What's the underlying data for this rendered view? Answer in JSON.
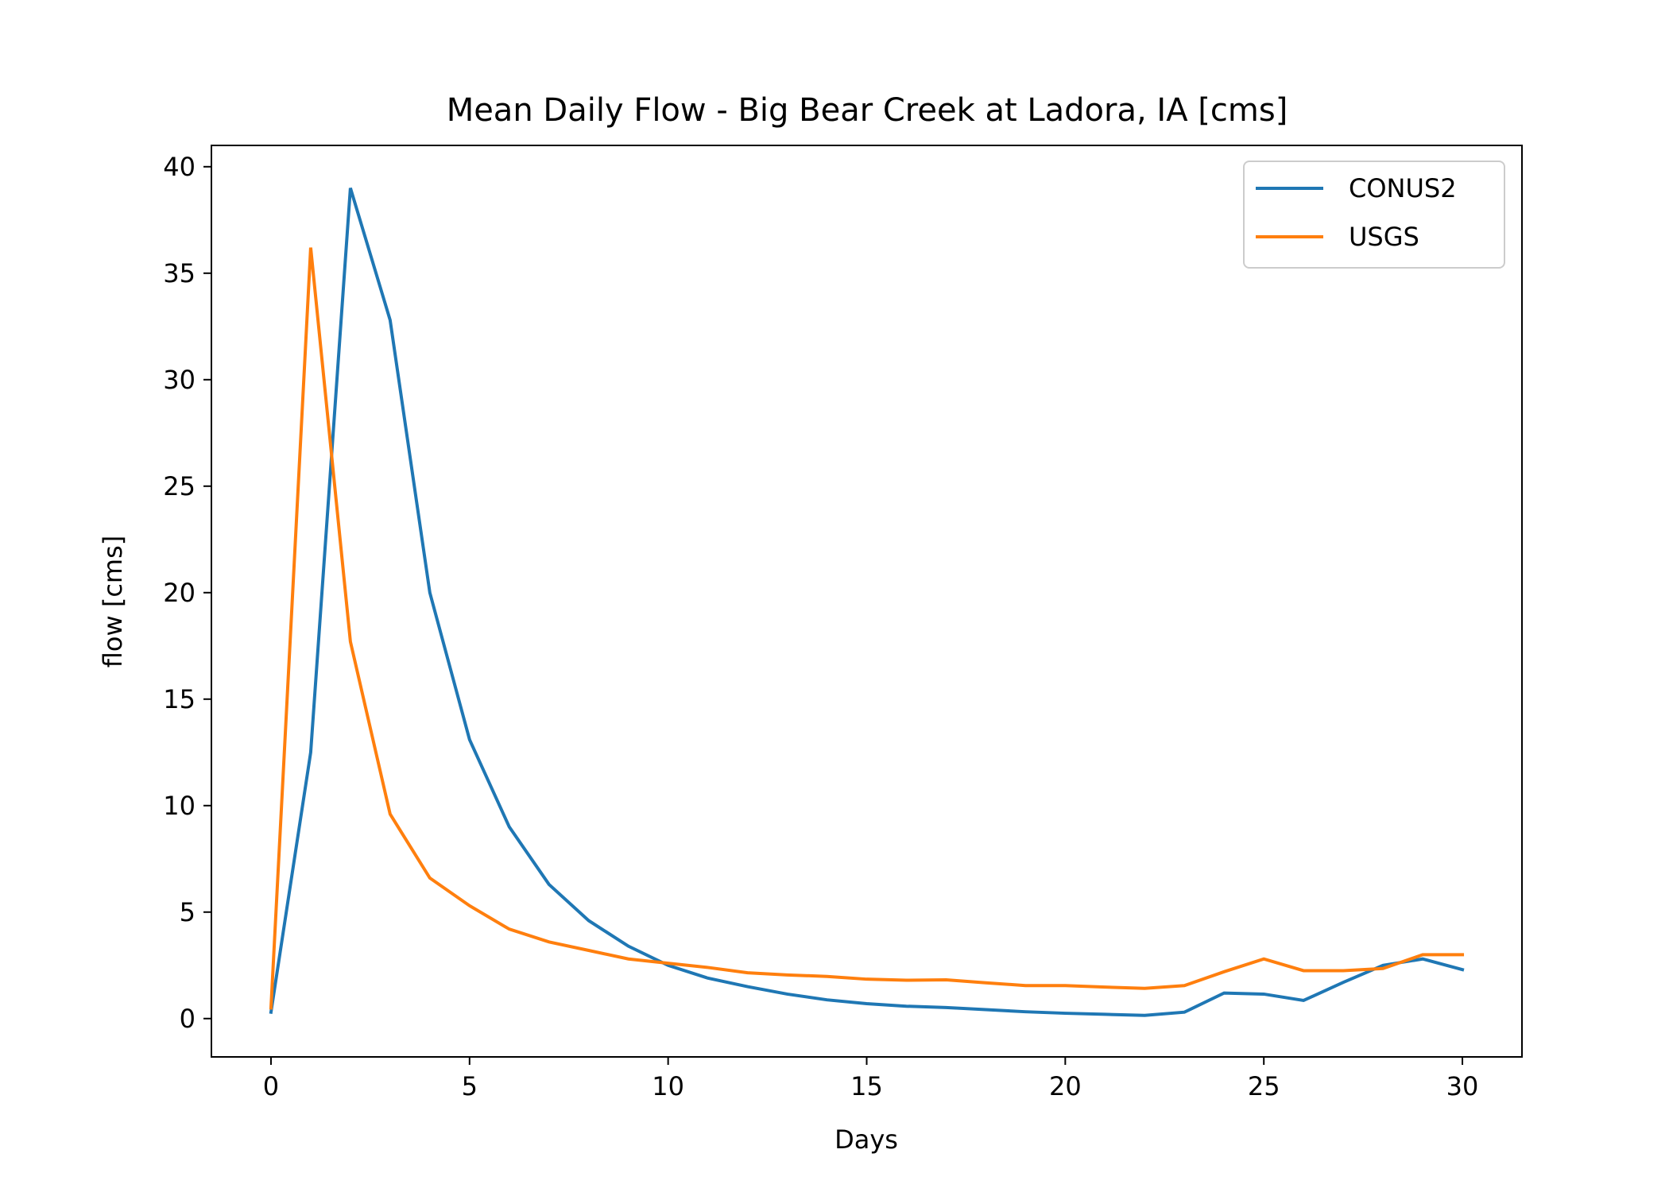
{
  "chart_data": {
    "type": "line",
    "title": "Mean Daily Flow - Big Bear Creek at Ladora, IA [cms]",
    "xlabel": "Days",
    "ylabel": "flow [cms]",
    "xlim": [
      -1.5,
      31.5
    ],
    "ylim": [
      -1.8,
      41
    ],
    "xticks": [
      0,
      5,
      10,
      15,
      20,
      25,
      30
    ],
    "yticks": [
      0,
      5,
      10,
      15,
      20,
      25,
      30,
      35,
      40
    ],
    "grid": false,
    "legend_position": "top-right",
    "x": [
      0,
      1,
      2,
      3,
      4,
      5,
      6,
      7,
      8,
      9,
      10,
      11,
      12,
      13,
      14,
      15,
      16,
      17,
      18,
      19,
      20,
      21,
      22,
      23,
      24,
      25,
      26,
      27,
      28,
      29,
      30
    ],
    "series": [
      {
        "name": "CONUS2",
        "color": "#1f77b4",
        "values": [
          0.3,
          12.5,
          39.0,
          32.8,
          20.0,
          13.1,
          9.0,
          6.3,
          4.6,
          3.4,
          2.5,
          1.9,
          1.5,
          1.15,
          0.88,
          0.7,
          0.58,
          0.52,
          0.42,
          0.32,
          0.25,
          0.2,
          0.15,
          0.3,
          1.2,
          1.15,
          0.85,
          1.7,
          2.5,
          2.8,
          2.3
        ]
      },
      {
        "name": "USGS",
        "color": "#ff7f0e",
        "values": [
          0.5,
          36.2,
          17.7,
          9.6,
          6.6,
          5.3,
          4.2,
          3.6,
          3.2,
          2.8,
          2.6,
          2.4,
          2.15,
          2.05,
          1.98,
          1.85,
          1.8,
          1.82,
          1.68,
          1.55,
          1.55,
          1.48,
          1.42,
          1.55,
          2.2,
          2.8,
          2.25,
          2.25,
          2.35,
          3.0,
          3.0
        ]
      }
    ]
  }
}
